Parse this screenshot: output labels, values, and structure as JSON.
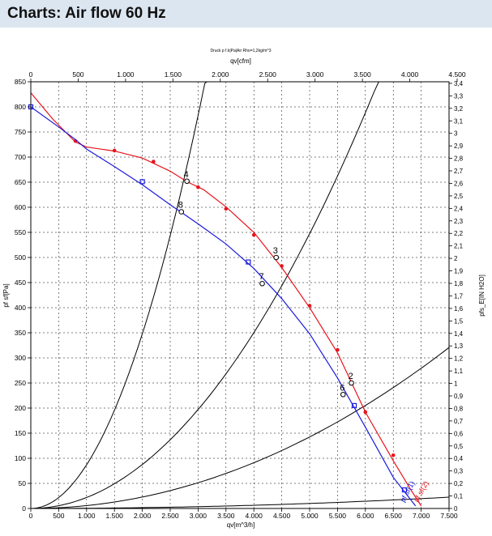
{
  "header": {
    "title": "Charts: Air flow 60 Hz"
  },
  "chart_data": {
    "type": "line",
    "top_note": "Druck p f.k|Pa|Air Rho=1,2kg/m^3",
    "x_label": "qv[m^3/h]",
    "x_top_label": "qv[cfm]",
    "y_label": "pf sf[Pa]",
    "y_right_label": "pfs_E[IN H2O]",
    "xlim": [
      0,
      7500
    ],
    "ylim": [
      0,
      850
    ],
    "x_ticks": [
      0,
      500,
      1000,
      1500,
      2000,
      2500,
      3000,
      3500,
      4000,
      4500,
      5000,
      5500,
      6000,
      6500,
      7000,
      7500
    ],
    "x_tick_labels": [
      "0",
      "500",
      "1.000",
      "1.500",
      "2.000",
      "2.500",
      "3.000",
      "3.500",
      "4.000",
      "4.500",
      "5.000",
      "5.500",
      "6.000",
      "6.500",
      "7.000",
      "7.500"
    ],
    "x_top_ticks": [
      0,
      500,
      1000,
      1500,
      2000,
      2500,
      3000,
      3500,
      4000,
      4500
    ],
    "x_top_tick_labels": [
      "0",
      "500",
      "1.000",
      "1.500",
      "2.000",
      "2.500",
      "3.000",
      "3.500",
      "4.000",
      "4.500"
    ],
    "y_ticks": [
      0,
      50,
      100,
      150,
      200,
      250,
      300,
      350,
      400,
      450,
      500,
      550,
      600,
      650,
      700,
      750,
      800,
      850
    ],
    "y_right_ticks": [
      0,
      0.1,
      0.2,
      0.3,
      0.4,
      0.5,
      0.6,
      0.7,
      0.8,
      0.9,
      1.0,
      1.1,
      1.2,
      1.3,
      1.4,
      1.5,
      1.6,
      1.7,
      1.8,
      1.9,
      2.0,
      2.1,
      2.2,
      2.3,
      2.4,
      2.5,
      2.6,
      2.7,
      2.8,
      2.9,
      3.0,
      3.1,
      3.2,
      3.3,
      3.4
    ],
    "y_right_tick_labels": [
      "0",
      "0,1",
      "0,2",
      "0,3",
      "0,4",
      "0,5",
      "0,6",
      "0,7",
      "0,8",
      "0,9",
      "1",
      "1,1",
      "1,2",
      "1,3",
      "1,4",
      "1,5",
      "1,6",
      "1,7",
      "1,8",
      "1,9",
      "2",
      "2,1",
      "2,2",
      "2,3",
      "2,4",
      "2,5",
      "2,6",
      "2,7",
      "2,8",
      "2,9",
      "3",
      "3,1",
      "3,2",
      "3,3",
      "3,4"
    ],
    "grid": true,
    "series": [
      {
        "name": "pf sf(2)",
        "color": "#e8141c",
        "x": [
          0,
          400,
          800,
          1000,
          1500,
          2000,
          2500,
          2800,
          3100,
          3500,
          4000,
          4500,
          5000,
          5500,
          6000,
          6500,
          6800,
          7000
        ],
        "y": [
          828,
          775,
          730,
          720,
          712,
          698,
          672,
          651,
          635,
          601,
          550,
          480,
          400,
          310,
          192,
          95,
          40,
          5
        ],
        "markers": [
          [
            800,
            732
          ],
          [
            1500,
            713
          ],
          [
            2200,
            691
          ],
          [
            3000,
            640
          ],
          [
            3500,
            597
          ],
          [
            4000,
            545
          ],
          [
            4500,
            483
          ],
          [
            5000,
            404
          ],
          [
            5500,
            316
          ],
          [
            6000,
            192
          ],
          [
            6500,
            106
          ]
        ]
      },
      {
        "name": "pf sf(1)",
        "color": "#1a1adc",
        "x": [
          0,
          500,
          800,
          1000,
          1500,
          2000,
          2500,
          2700,
          3000,
          3500,
          4000,
          4500,
          5000,
          5500,
          6000,
          6500,
          6900
        ],
        "y": [
          800,
          760,
          735,
          716,
          681,
          645,
          605,
          590,
          567,
          527,
          478,
          418,
          348,
          260,
          162,
          62,
          5
        ],
        "markers": [
          [
            0,
            800
          ],
          [
            2000,
            651
          ],
          [
            3900,
            491
          ],
          [
            5800,
            205
          ],
          [
            6700,
            37
          ]
        ]
      }
    ],
    "system_curves": [
      {
        "name": "curve-a",
        "k": 8.7e-05,
        "x_max": 3200
      },
      {
        "name": "curve-b",
        "k": 2.19e-05,
        "x_max": 6400
      },
      {
        "name": "curve-c",
        "k": 5.7e-06,
        "x_max": 7500
      },
      {
        "name": "curve-d",
        "k": 4e-07,
        "x_max": 7500
      }
    ],
    "operating_points": [
      {
        "label": "4",
        "x": 2800,
        "y": 652
      },
      {
        "label": "8",
        "x": 2700,
        "y": 591
      },
      {
        "label": "3",
        "x": 4400,
        "y": 500
      },
      {
        "label": "7",
        "x": 4150,
        "y": 448
      },
      {
        "label": "2",
        "x": 5750,
        "y": 250
      },
      {
        "label": "6",
        "x": 5600,
        "y": 227
      }
    ],
    "series_labels": [
      "pf sf(2)",
      "pf sf(1)"
    ]
  }
}
